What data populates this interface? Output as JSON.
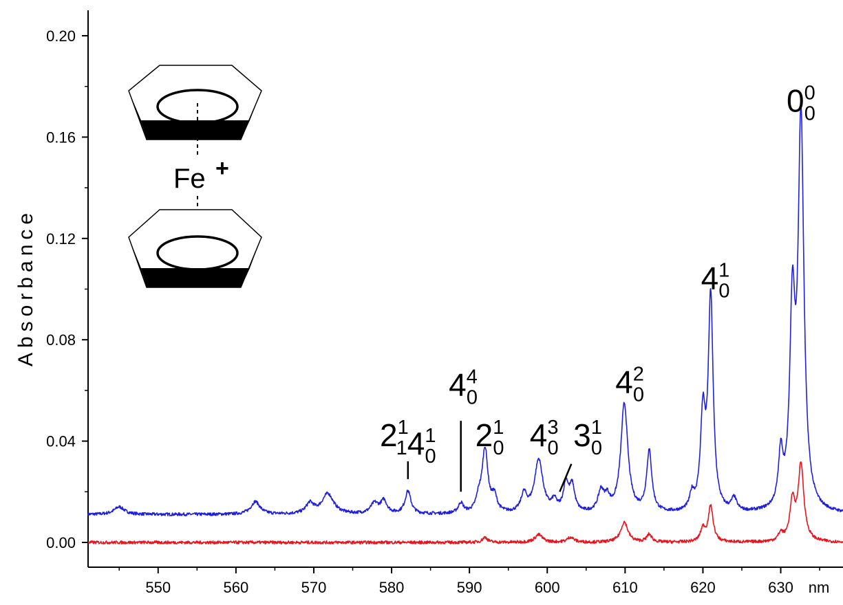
{
  "chart_data": {
    "type": "line",
    "title": "",
    "xlabel": "nm",
    "ylabel": "Absorbance",
    "xlim": [
      541,
      638
    ],
    "ylim": [
      -0.01,
      0.21
    ],
    "xticks": [
      550,
      560,
      570,
      580,
      590,
      600,
      610,
      620,
      630
    ],
    "yticks": [
      0.0,
      0.04,
      0.08,
      0.12,
      0.16,
      0.2
    ],
    "ytick_labels": [
      "0.00",
      "0.04",
      "0.08",
      "0.12",
      "0.16",
      "0.20"
    ],
    "grid": false,
    "series": [
      {
        "color": "#1f1fdc",
        "baseline": 0.011,
        "peaks": [
          {
            "x": 545.0,
            "h": 0.003,
            "w": 0.8
          },
          {
            "x": 562.5,
            "h": 0.005,
            "w": 0.7
          },
          {
            "x": 569.5,
            "h": 0.004,
            "w": 0.6
          },
          {
            "x": 571.8,
            "h": 0.008,
            "w": 0.9
          },
          {
            "x": 577.8,
            "h": 0.004,
            "w": 0.6
          },
          {
            "x": 579.0,
            "h": 0.005,
            "w": 0.5
          },
          {
            "x": 582.1,
            "h": 0.009,
            "w": 0.45
          },
          {
            "x": 588.9,
            "h": 0.004,
            "w": 0.4
          },
          {
            "x": 591.2,
            "h": 0.005,
            "w": 0.4
          },
          {
            "x": 592.0,
            "h": 0.025,
            "w": 0.45
          },
          {
            "x": 593.2,
            "h": 0.006,
            "w": 0.4
          },
          {
            "x": 597.0,
            "h": 0.007,
            "w": 0.45
          },
          {
            "x": 598.9,
            "h": 0.021,
            "w": 0.65
          },
          {
            "x": 600.9,
            "h": 0.004,
            "w": 0.4
          },
          {
            "x": 602.4,
            "h": 0.011,
            "w": 0.4
          },
          {
            "x": 603.2,
            "h": 0.01,
            "w": 0.4
          },
          {
            "x": 606.9,
            "h": 0.008,
            "w": 0.45
          },
          {
            "x": 607.7,
            "h": 0.005,
            "w": 0.4
          },
          {
            "x": 609.9,
            "h": 0.043,
            "w": 0.55
          },
          {
            "x": 613.1,
            "h": 0.024,
            "w": 0.4
          },
          {
            "x": 618.6,
            "h": 0.006,
            "w": 0.35
          },
          {
            "x": 620.0,
            "h": 0.036,
            "w": 0.38
          },
          {
            "x": 621.0,
            "h": 0.084,
            "w": 0.38
          },
          {
            "x": 624.0,
            "h": 0.005,
            "w": 0.4
          },
          {
            "x": 630.0,
            "h": 0.02,
            "w": 0.35
          },
          {
            "x": 631.5,
            "h": 0.075,
            "w": 0.4
          },
          {
            "x": 632.6,
            "h": 0.153,
            "w": 0.45
          }
        ]
      },
      {
        "color": "#e8141e",
        "baseline": 0.0,
        "peaks": [
          {
            "x": 592.0,
            "h": 0.002,
            "w": 0.4
          },
          {
            "x": 598.9,
            "h": 0.003,
            "w": 0.6
          },
          {
            "x": 603.0,
            "h": 0.002,
            "w": 0.5
          },
          {
            "x": 609.9,
            "h": 0.008,
            "w": 0.55
          },
          {
            "x": 613.1,
            "h": 0.003,
            "w": 0.4
          },
          {
            "x": 620.0,
            "h": 0.005,
            "w": 0.38
          },
          {
            "x": 621.0,
            "h": 0.014,
            "w": 0.38
          },
          {
            "x": 630.0,
            "h": 0.003,
            "w": 0.35
          },
          {
            "x": 631.5,
            "h": 0.015,
            "w": 0.4
          },
          {
            "x": 632.6,
            "h": 0.03,
            "w": 0.45
          }
        ]
      }
    ],
    "annotations": [
      {
        "id": "ann-2141",
        "main": "2",
        "sub": "1",
        "sup": "1",
        "main2": "4",
        "sub2": "0",
        "sup2": "1",
        "x": 582.1,
        "y": 0.038,
        "marker": [
          [
            582.1,
            0.032
          ],
          [
            582.1,
            0.025
          ]
        ]
      },
      {
        "id": "ann-44",
        "main": "4",
        "sub": "0",
        "sup": "4",
        "x": 589.2,
        "y": 0.058,
        "marker": [
          [
            588.9,
            0.048
          ],
          [
            588.9,
            0.02
          ]
        ]
      },
      {
        "id": "ann-21",
        "main": "2",
        "sub": "0",
        "sup": "1",
        "x": 592.6,
        "y": 0.038
      },
      {
        "id": "ann-43",
        "main": "4",
        "sub": "0",
        "sup": "3",
        "x": 599.6,
        "y": 0.038
      },
      {
        "id": "ann-31",
        "main": "3",
        "sub": "0",
        "sup": "1",
        "x": 605.2,
        "y": 0.038,
        "marker": [
          [
            603.1,
            0.031
          ],
          [
            601.6,
            0.02
          ]
        ]
      },
      {
        "id": "ann-42",
        "main": "4",
        "sub": "0",
        "sup": "2",
        "x": 610.6,
        "y": 0.059
      },
      {
        "id": "ann-41",
        "main": "4",
        "sub": "0",
        "sup": "1",
        "x": 621.6,
        "y": 0.1
      },
      {
        "id": "ann-00",
        "main": "0",
        "sub": "0",
        "sup": "0",
        "x": 632.6,
        "y": 0.17
      }
    ],
    "molecule_label": "Fe"
  }
}
